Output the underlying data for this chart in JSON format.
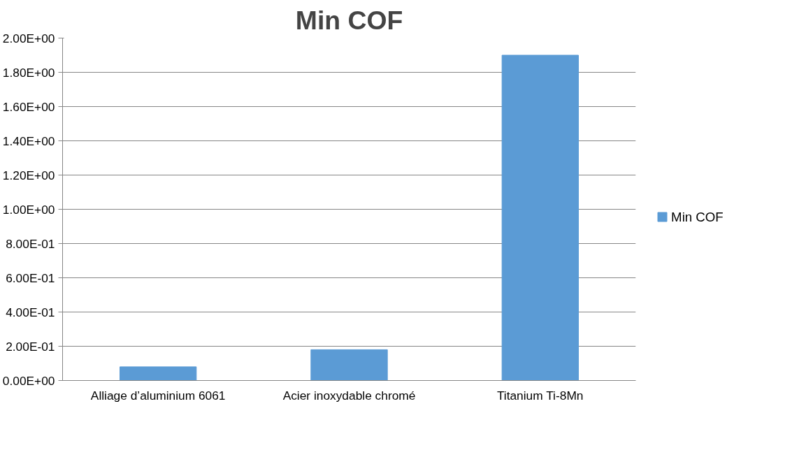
{
  "chart_data": {
    "type": "bar",
    "title": "Min COF",
    "categories": [
      "Alliage d’aluminium 6061",
      "Acier inoxydable chromé",
      "Titanium Ti-8Mn"
    ],
    "series": [
      {
        "name": "Min COF",
        "color": "#5b9bd5",
        "values": [
          0.08,
          0.18,
          1.9
        ]
      }
    ],
    "ylim": [
      0,
      2
    ],
    "yticks": [
      {
        "value": 0,
        "label": "0.00E+00"
      },
      {
        "value": 0.2,
        "label": "2.00E-01"
      },
      {
        "value": 0.4,
        "label": "4.00E-01"
      },
      {
        "value": 0.6,
        "label": "6.00E-01"
      },
      {
        "value": 0.8,
        "label": "8.00E-01"
      },
      {
        "value": 1.0,
        "label": "1.00E+00"
      },
      {
        "value": 1.2,
        "label": "1.20E+00"
      },
      {
        "value": 1.4,
        "label": "1.40E+00"
      },
      {
        "value": 1.6,
        "label": "1.60E+00"
      },
      {
        "value": 1.8,
        "label": "1.80E+00"
      },
      {
        "value": 2.0,
        "label": "2.00E+00"
      }
    ],
    "grid": "y",
    "legend": "right"
  }
}
